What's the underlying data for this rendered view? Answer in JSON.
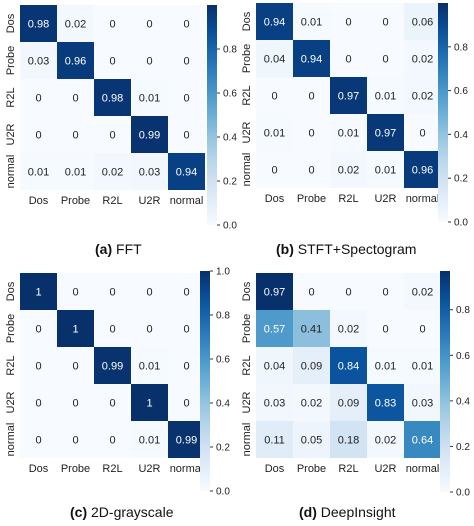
{
  "chart_data": [
    {
      "type": "heatmap",
      "caption_label": "(a)",
      "caption_text": "FFT",
      "rows": [
        "Dos",
        "Probe",
        "R2L",
        "U2R",
        "normal"
      ],
      "cols": [
        "Dos",
        "Probe",
        "R2L",
        "U2R",
        "normal"
      ],
      "values": [
        [
          "0.98",
          "0.02",
          "0",
          "0",
          "0"
        ],
        [
          "0.03",
          "0.96",
          "0",
          "0",
          "0"
        ],
        [
          "0",
          "0",
          "0.98",
          "0.01",
          "0"
        ],
        [
          "0",
          "0",
          "0",
          "0.99",
          "0"
        ],
        [
          "0.01",
          "0.01",
          "0.02",
          "0.03",
          "0.94"
        ]
      ],
      "colorbar_range": [
        0,
        1
      ],
      "colorbar_ticks": [
        "0.0",
        "0.2",
        "0.4",
        "0.6",
        "0.8"
      ]
    },
    {
      "type": "heatmap",
      "caption_label": "(b)",
      "caption_text": "STFT+Spectogram",
      "rows": [
        "Dos",
        "Probe",
        "R2L",
        "U2R",
        "normal"
      ],
      "cols": [
        "Dos",
        "Probe",
        "R2L",
        "U2R",
        "normal"
      ],
      "values": [
        [
          "0.94",
          "0.01",
          "0",
          "0",
          "0.06"
        ],
        [
          "0.04",
          "0.94",
          "0",
          "0",
          "0.02"
        ],
        [
          "0",
          "0",
          "0.97",
          "0.01",
          "0.02"
        ],
        [
          "0.01",
          "0",
          "0.01",
          "0.97",
          "0"
        ],
        [
          "0",
          "0",
          "0.02",
          "0.01",
          "0.96"
        ]
      ],
      "colorbar_range": [
        0,
        1
      ],
      "colorbar_ticks": [
        "0.0",
        "0.2",
        "0.4",
        "0.6",
        "0.8"
      ]
    },
    {
      "type": "heatmap",
      "caption_label": "(c)",
      "caption_text": "2D-grayscale",
      "rows": [
        "Dos",
        "Probe",
        "R2L",
        "U2R",
        "normal"
      ],
      "cols": [
        "Dos",
        "Probe",
        "R2L",
        "U2R",
        "normal"
      ],
      "values": [
        [
          "1",
          "0",
          "0",
          "0",
          "0"
        ],
        [
          "0",
          "1",
          "0",
          "0",
          "0"
        ],
        [
          "0",
          "0",
          "0.99",
          "0.01",
          "0"
        ],
        [
          "0",
          "0",
          "0",
          "1",
          "0"
        ],
        [
          "0",
          "0",
          "0",
          "0.01",
          "0.99"
        ]
      ],
      "colorbar_range": [
        0,
        1
      ],
      "colorbar_ticks": [
        "0.0",
        "0.2",
        "0.4",
        "0.6",
        "0.8",
        "1.0"
      ]
    },
    {
      "type": "heatmap",
      "caption_label": "(d)",
      "caption_text": "DeepInsight",
      "rows": [
        "Dos",
        "Probe",
        "R2L",
        "U2R",
        "normal"
      ],
      "cols": [
        "Dos",
        "Probe",
        "R2L",
        "U2R",
        "normal"
      ],
      "values": [
        [
          "0.97",
          "0",
          "0",
          "0",
          "0.02"
        ],
        [
          "0.57",
          "0.41",
          "0.02",
          "0",
          "0"
        ],
        [
          "0.04",
          "0.09",
          "0.84",
          "0.01",
          "0.01"
        ],
        [
          "0.03",
          "0.02",
          "0.09",
          "0.83",
          "0.03"
        ],
        [
          "0.11",
          "0.05",
          "0.18",
          "0.02",
          "0.64"
        ]
      ],
      "colorbar_range": [
        0,
        0.97
      ],
      "colorbar_ticks": [
        "0.0",
        "0.2",
        "0.4",
        "0.6",
        "0.8"
      ]
    }
  ]
}
